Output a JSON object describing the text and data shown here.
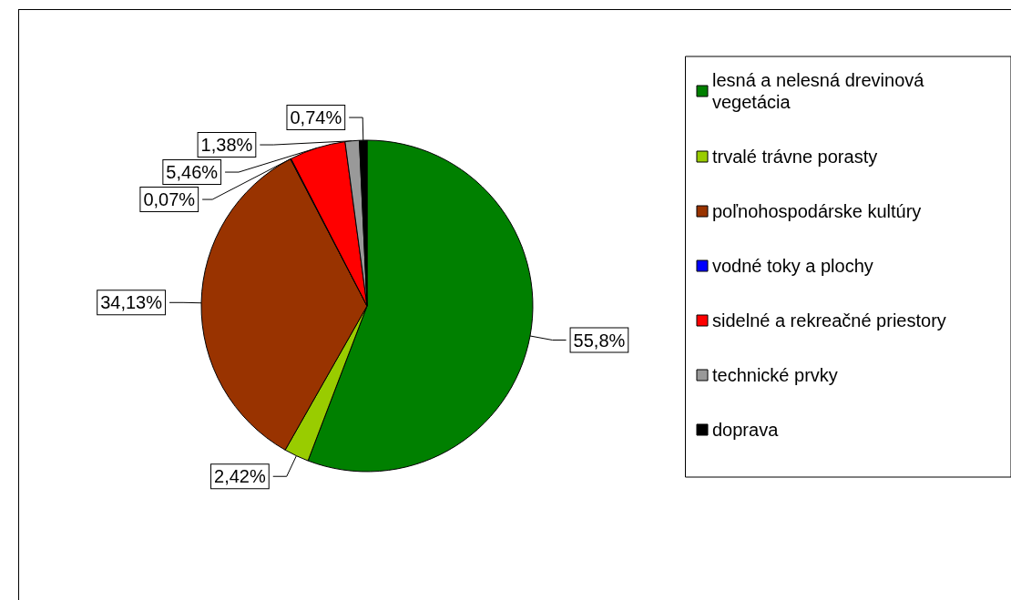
{
  "chart_data": {
    "type": "pie",
    "categories": [
      "lesná a nelesná drevinová vegetácia",
      "trvalé trávne porasty",
      "poľnohospodárske kultúry",
      "vodné toky a plochy",
      "sidelné a rekreačné priestory",
      "technické prvky",
      "doprava"
    ],
    "values": [
      55.8,
      2.42,
      34.13,
      0.07,
      5.46,
      1.38,
      0.74
    ],
    "colors": [
      "#008000",
      "#99cc00",
      "#993300",
      "#0000ff",
      "#ff0000",
      "#999999",
      "#000000"
    ],
    "value_labels": [
      "55,8%",
      "2,42%",
      "34,13%",
      "0,07%",
      "5,46%",
      "1,38%",
      "0,74%"
    ],
    "legend": "right"
  }
}
